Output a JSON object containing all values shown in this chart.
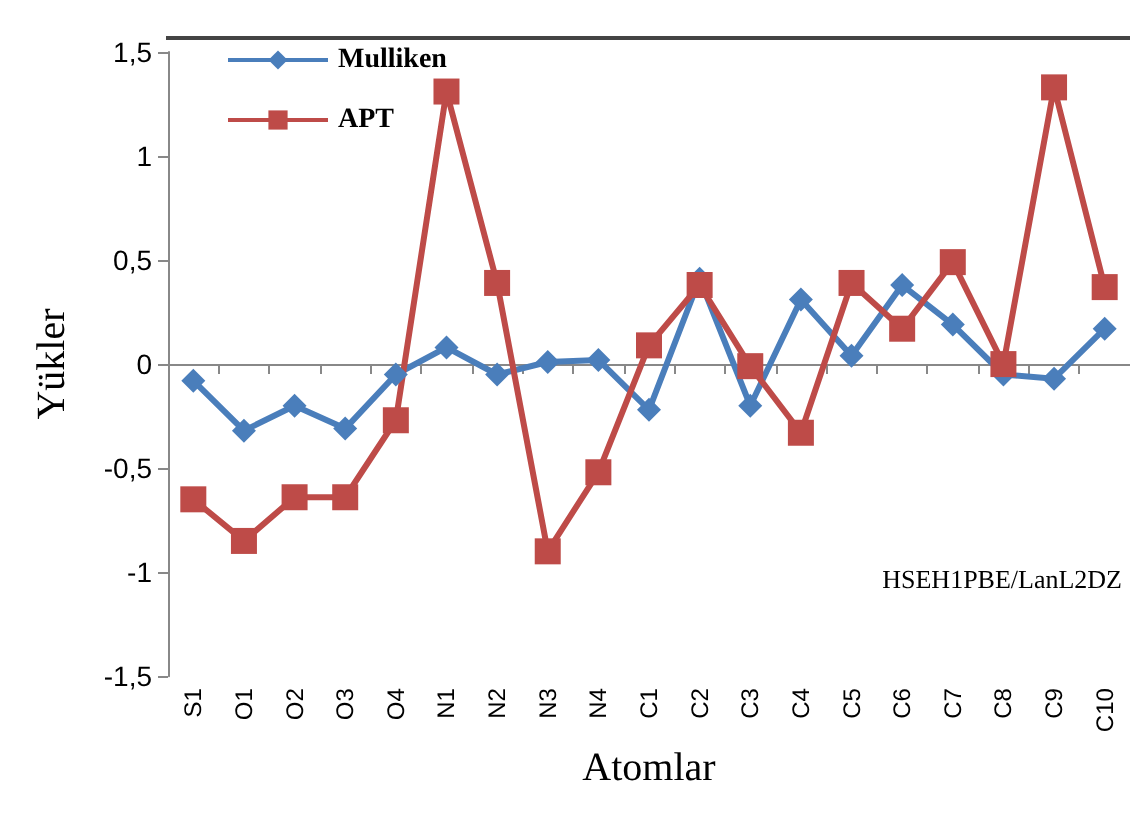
{
  "chart_data": {
    "type": "line",
    "xlabel": "Atomlar",
    "ylabel": "Yükler",
    "categories": [
      "S1",
      "O1",
      "O2",
      "O3",
      "O4",
      "N1",
      "N2",
      "N3",
      "N4",
      "C1",
      "C2",
      "C3",
      "C4",
      "C5",
      "C6",
      "C7",
      "C8",
      "C9",
      "C10"
    ],
    "series": [
      {
        "name": "Mulliken",
        "color": "#4a7ebb",
        "marker": "diamond",
        "values": [
          -0.08,
          -0.32,
          -0.2,
          -0.31,
          -0.05,
          0.08,
          -0.05,
          0.01,
          0.02,
          -0.22,
          0.41,
          -0.2,
          0.31,
          0.04,
          0.38,
          0.19,
          -0.05,
          -0.07,
          0.17
        ]
      },
      {
        "name": "APT",
        "color": "#be4b48",
        "marker": "square",
        "values": [
          -0.65,
          -0.85,
          -0.64,
          -0.64,
          -0.27,
          1.31,
          0.39,
          -0.9,
          -0.52,
          0.09,
          0.38,
          -0.01,
          -0.33,
          0.39,
          0.17,
          0.49,
          0.0,
          1.33,
          0.37
        ]
      }
    ],
    "ylim": [
      -1.5,
      1.5
    ],
    "yticks": [
      {
        "value": -1.5,
        "label": "-1,5"
      },
      -1,
      {
        "value": -0.5,
        "label": "-0,5"
      },
      0,
      {
        "value": 0.5,
        "label": "0,5"
      },
      1,
      {
        "value": 1.5,
        "label": "1,5"
      }
    ],
    "legend": "top left",
    "line_style": "solid",
    "annotations": [
      "HSEH1PBE/LanL2DZ"
    ]
  }
}
